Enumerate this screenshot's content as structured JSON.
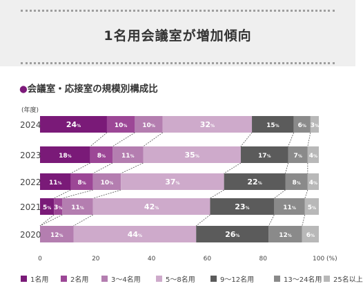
{
  "header": {
    "title": "1名用会議室が増加傾向"
  },
  "subtitle": {
    "bullet": "●",
    "text": "会議室・応接室の規模別構成比"
  },
  "chart_data": {
    "type": "bar",
    "orientation": "horizontal",
    "stacked": true,
    "year_axis_label": "(年度)",
    "x_unit_label": "100 (%)",
    "xlim": [
      0,
      100
    ],
    "x_ticks": [
      "0",
      "20",
      "40",
      "60",
      "80"
    ],
    "grid": false,
    "legend_position": "bottom",
    "categories": [
      "2024",
      "2023",
      "2022",
      "2021",
      "2020"
    ],
    "series": [
      {
        "name": "1名用",
        "color": "#7a1a78",
        "values": [
          24,
          18,
          11,
          5,
          0
        ]
      },
      {
        "name": "2名用",
        "color": "#9c4796",
        "values": [
          10,
          8,
          8,
          3,
          0
        ]
      },
      {
        "name": "3〜4名用",
        "color": "#b47eb0",
        "values": [
          10,
          11,
          10,
          11,
          12
        ]
      },
      {
        "name": "5〜8名用",
        "color": "#ceaacb",
        "values": [
          32,
          35,
          37,
          42,
          44
        ]
      },
      {
        "name": "9〜12名用",
        "color": "#5b5b5b",
        "values": [
          15,
          17,
          22,
          23,
          26
        ]
      },
      {
        "name": "13〜24名用",
        "color": "#8a8a8a",
        "values": [
          6,
          7,
          8,
          11,
          12
        ]
      },
      {
        "name": "25名以上",
        "color": "#b8b8b8",
        "values": [
          3,
          4,
          4,
          5,
          6
        ]
      }
    ],
    "value_suffix": "%"
  }
}
